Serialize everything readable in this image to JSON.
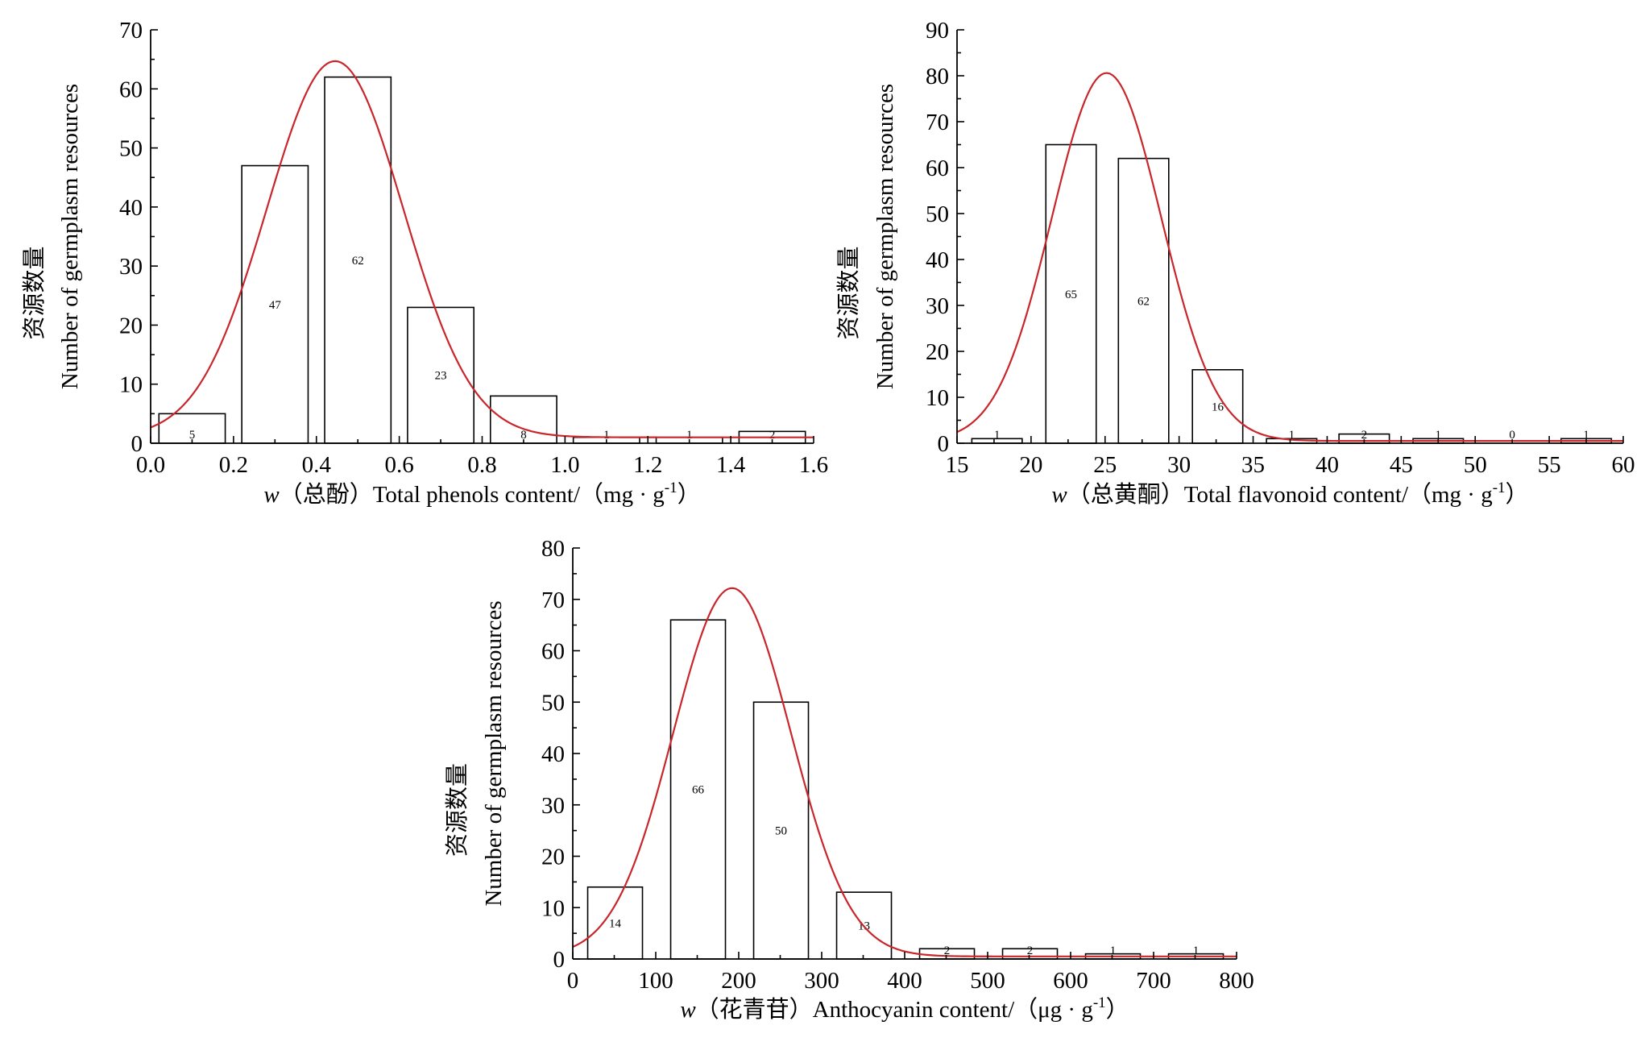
{
  "colors": {
    "curve": "#c8262b",
    "bar_fill": "#ffffff",
    "bar_stroke": "#000000"
  },
  "chart_data": [
    {
      "type": "bar",
      "ylabel_cn": "资源数量",
      "ylabel_en": "Number of germplasm resources",
      "xlabel_var": "w",
      "xlabel_rest": "（总酚）Total phenols content/（mg · g",
      "xlabel_sup": "-1",
      "xlabel_end": "）",
      "xlim": [
        0.0,
        1.6
      ],
      "ylim": [
        0,
        70
      ],
      "xticks": [
        0.0,
        0.2,
        0.4,
        0.6,
        0.8,
        1.0,
        1.2,
        1.4,
        1.6
      ],
      "xtick_labels": [
        "0.0",
        "0.2",
        "0.4",
        "0.6",
        "0.8",
        "1.0",
        "1.2",
        "1.4",
        "1.6"
      ],
      "yticks": [
        0,
        10,
        20,
        30,
        40,
        50,
        60,
        70
      ],
      "ytick_labels": [
        "0",
        "10",
        "20",
        "30",
        "40",
        "50",
        "60",
        "70"
      ],
      "bins": [
        {
          "x0": 0.02,
          "x1": 0.18,
          "value": 5,
          "label": "5"
        },
        {
          "x0": 0.22,
          "x1": 0.38,
          "value": 47,
          "label": "47"
        },
        {
          "x0": 0.42,
          "x1": 0.58,
          "value": 62,
          "label": "62"
        },
        {
          "x0": 0.62,
          "x1": 0.78,
          "value": 23,
          "label": "23"
        },
        {
          "x0": 0.82,
          "x1": 0.98,
          "value": 8,
          "label": "8"
        },
        {
          "x0": 1.02,
          "x1": 1.18,
          "value": 1,
          "label": "1"
        },
        {
          "x0": 1.22,
          "x1": 1.38,
          "value": 1,
          "label": "1"
        },
        {
          "x0": 1.42,
          "x1": 1.58,
          "value": 2,
          "label": "2"
        }
      ],
      "curve": {
        "mean": 0.445,
        "sd": 0.165,
        "peak": 64.7,
        "baseline": 1.0
      }
    },
    {
      "type": "bar",
      "ylabel_cn": "资源数量",
      "ylabel_en": "Number of germplasm resources",
      "xlabel_var": "w",
      "xlabel_rest": "（总黄酮）Total flavonoid content/（mg · g",
      "xlabel_sup": "-1",
      "xlabel_end": "）",
      "xlim": [
        15,
        60
      ],
      "ylim": [
        0,
        90
      ],
      "xticks": [
        15,
        20,
        25,
        30,
        35,
        40,
        45,
        50,
        55,
        60
      ],
      "xtick_labels": [
        "15",
        "20",
        "25",
        "30",
        "35",
        "40",
        "45",
        "50",
        "55",
        "60"
      ],
      "yticks": [
        0,
        10,
        20,
        30,
        40,
        50,
        60,
        70,
        80,
        90
      ],
      "ytick_labels": [
        "0",
        "10",
        "20",
        "30",
        "40",
        "50",
        "60",
        "70",
        "80",
        "90"
      ],
      "bins": [
        {
          "x0": 16.0,
          "x1": 19.4,
          "value": 1,
          "label": "1"
        },
        {
          "x0": 21.0,
          "x1": 24.4,
          "value": 65,
          "label": "65"
        },
        {
          "x0": 25.9,
          "x1": 29.3,
          "value": 62,
          "label": "62"
        },
        {
          "x0": 30.9,
          "x1": 34.3,
          "value": 16,
          "label": "16"
        },
        {
          "x0": 35.9,
          "x1": 39.3,
          "value": 1,
          "label": "1"
        },
        {
          "x0": 40.8,
          "x1": 44.2,
          "value": 2,
          "label": "2"
        },
        {
          "x0": 45.8,
          "x1": 49.2,
          "value": 1,
          "label": "1"
        },
        {
          "x0": 50.8,
          "x1": 54.2,
          "value": 0,
          "label": "0"
        },
        {
          "x0": 55.8,
          "x1": 59.2,
          "value": 1,
          "label": "1"
        }
      ],
      "curve": {
        "mean": 25.1,
        "sd": 3.7,
        "peak": 80.6,
        "baseline": 0.5
      }
    },
    {
      "type": "bar",
      "ylabel_cn": "资源数量",
      "ylabel_en": "Number of germplasm resources",
      "xlabel_var": "w",
      "xlabel_rest": "（花青苷）Anthocyanin content/（μg · g",
      "xlabel_sup": "-1",
      "xlabel_end": "）",
      "xlim": [
        0,
        800
      ],
      "ylim": [
        0,
        80
      ],
      "xticks": [
        0,
        100,
        200,
        300,
        400,
        500,
        600,
        700,
        800
      ],
      "xtick_labels": [
        "0",
        "100",
        "200",
        "300",
        "400",
        "500",
        "600",
        "700",
        "800"
      ],
      "yticks": [
        0,
        10,
        20,
        30,
        40,
        50,
        60,
        70,
        80
      ],
      "ytick_labels": [
        "0",
        "10",
        "20",
        "30",
        "40",
        "50",
        "60",
        "70",
        "80"
      ],
      "bins": [
        {
          "x0": 18,
          "x1": 84,
          "value": 14,
          "label": "14"
        },
        {
          "x0": 118,
          "x1": 184,
          "value": 66,
          "label": "66"
        },
        {
          "x0": 218,
          "x1": 284,
          "value": 50,
          "label": "50"
        },
        {
          "x0": 318,
          "x1": 384,
          "value": 13,
          "label": "13"
        },
        {
          "x0": 418,
          "x1": 484,
          "value": 2,
          "label": "2"
        },
        {
          "x0": 518,
          "x1": 584,
          "value": 2,
          "label": "2"
        },
        {
          "x0": 618,
          "x1": 684,
          "value": 1,
          "label": "1"
        },
        {
          "x0": 718,
          "x1": 784,
          "value": 1,
          "label": "1"
        }
      ],
      "curve": {
        "mean": 192,
        "sd": 71,
        "peak": 72.2,
        "baseline": 0.5
      }
    }
  ]
}
